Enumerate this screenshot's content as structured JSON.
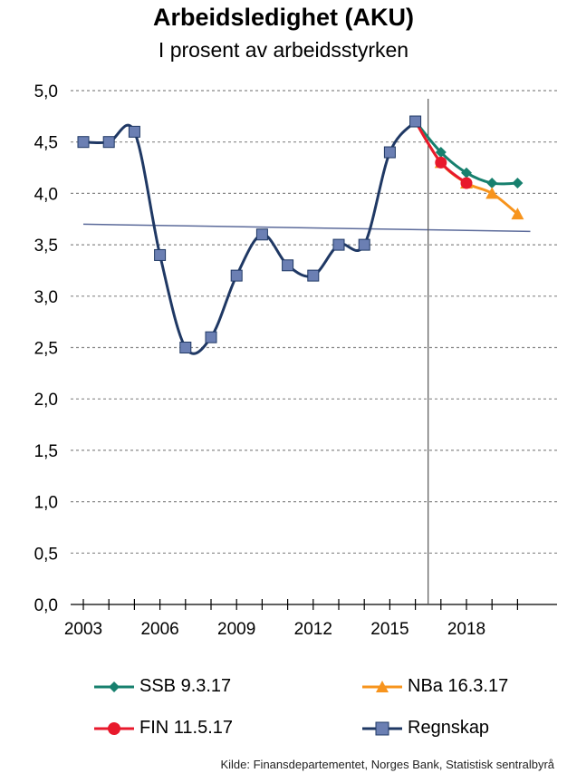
{
  "title": "Arbeidsledighet (AKU)",
  "subtitle": "I prosent av arbeidsstyrken",
  "source": "Kilde: Finansdepartementet,  Norges Bank,  Statistisk sentralbyrå",
  "chart_data": {
    "type": "line",
    "title": "Arbeidsledighet (AKU)",
    "subtitle": "I prosent av arbeidsstyrken",
    "xlim": [
      2003,
      2020
    ],
    "ylim": [
      0,
      5
    ],
    "y_ticks": [
      "0,0",
      "0,5",
      "1,0",
      "1,5",
      "2,0",
      "2,5",
      "3,0",
      "3,5",
      "4,0",
      "4,5",
      "5,0"
    ],
    "y_tick_values": [
      0,
      0.5,
      1,
      1.5,
      2,
      2.5,
      3,
      3.5,
      4,
      4.5,
      5
    ],
    "x_ticks": [
      "2003",
      "2006",
      "2009",
      "2012",
      "2015",
      "2018"
    ],
    "x_tick_values": [
      2003,
      2006,
      2009,
      2012,
      2015,
      2018
    ],
    "grid": "horizontal dashed",
    "legend_position": "bottom",
    "series": [
      {
        "name": "Regnskap",
        "color": "#1f3864",
        "marker": "square",
        "x": [
          2003,
          2004,
          2005,
          2006,
          2007,
          2008,
          2009,
          2010,
          2011,
          2012,
          2013,
          2014,
          2015,
          2016
        ],
        "y": [
          4.5,
          4.5,
          4.6,
          3.4,
          2.5,
          2.6,
          3.2,
          3.6,
          3.3,
          3.2,
          3.5,
          3.5,
          4.4,
          4.7
        ]
      },
      {
        "name": "SSB 9.3.17",
        "color": "#17806e",
        "marker": "diamond",
        "x": [
          2016,
          2017,
          2018,
          2019,
          2020
        ],
        "y": [
          4.7,
          4.4,
          4.2,
          4.1,
          4.1
        ]
      },
      {
        "name": "NBa 16.3.17",
        "color": "#f7941d",
        "marker": "triangle",
        "x": [
          2016,
          2017,
          2018,
          2019,
          2020
        ],
        "y": [
          4.7,
          4.3,
          4.1,
          4.0,
          3.8
        ]
      },
      {
        "name": "FIN 11.5.17",
        "color": "#e8192c",
        "marker": "circle",
        "x": [
          2016,
          2017,
          2018
        ],
        "y": [
          4.7,
          4.3,
          4.1
        ]
      }
    ],
    "trend_line": {
      "color": "#5b6a9a",
      "from": [
        2003,
        3.7
      ],
      "to": [
        2020.5,
        3.63
      ]
    },
    "vertical_marker": {
      "x": 2016.5,
      "color": "#555555"
    },
    "legend": [
      {
        "label": "SSB 9.3.17",
        "color": "#17806e",
        "marker": "diamond"
      },
      {
        "label": "NBa 16.3.17",
        "color": "#f7941d",
        "marker": "triangle"
      },
      {
        "label": "FIN 11.5.17",
        "color": "#e8192c",
        "marker": "circle"
      },
      {
        "label": "Regnskap",
        "color": "#1f3864",
        "marker": "square"
      }
    ]
  }
}
